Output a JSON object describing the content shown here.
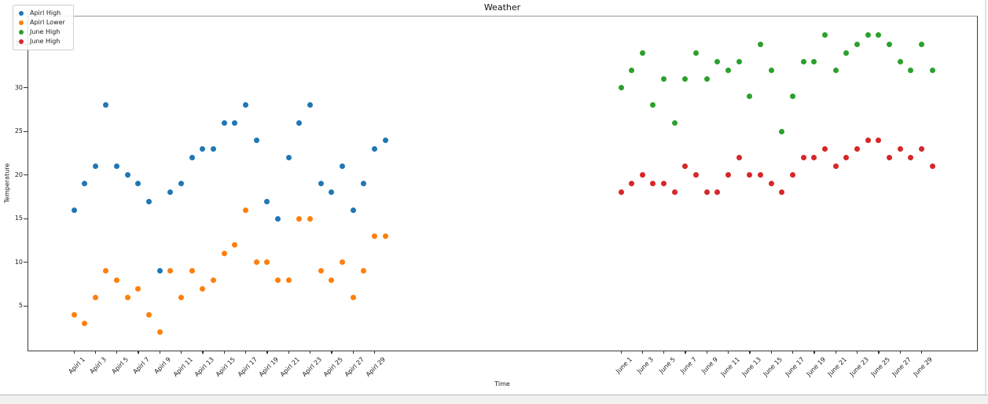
{
  "chart_data": {
    "type": "scatter",
    "title": "Weather",
    "xlabel": "Time",
    "ylabel": "Temperature",
    "ylim": [
      0,
      38
    ],
    "yticks": [
      5,
      10,
      15,
      20,
      25,
      30,
      35
    ],
    "grid": "off",
    "x_axis": {
      "groups": [
        {
          "label": "Apirl",
          "tick_days": [
            1,
            3,
            5,
            7,
            9,
            11,
            13,
            15,
            17,
            19,
            21,
            23,
            25,
            27,
            29
          ]
        },
        {
          "label": "June",
          "tick_days": [
            1,
            3,
            5,
            7,
            9,
            11,
            13,
            15,
            17,
            19,
            21,
            23,
            25,
            27,
            29
          ]
        }
      ]
    },
    "legend": {
      "position": "upper left",
      "entries": [
        {
          "label": "Apirl High",
          "color": "#1f77b4"
        },
        {
          "label": "Apirl Lower",
          "color": "#ff7f0e"
        },
        {
          "label": "June High",
          "color": "#2ca02c"
        },
        {
          "label": "June High",
          "color": "#d62728"
        }
      ]
    },
    "series": [
      {
        "name": "Apirl High",
        "color": "#1f77b4",
        "month": "Apirl",
        "first_day": 1,
        "values": [
          16,
          19,
          21,
          28,
          21,
          20,
          19,
          17,
          9,
          18,
          19,
          22,
          23,
          23,
          26,
          26,
          28,
          24,
          17,
          15,
          22,
          26,
          28,
          19,
          18,
          21,
          16,
          19,
          23,
          24
        ]
      },
      {
        "name": "Apirl Lower",
        "color": "#ff7f0e",
        "month": "Apirl",
        "first_day": 1,
        "values": [
          4,
          3,
          6,
          9,
          8,
          6,
          7,
          4,
          2,
          9,
          6,
          9,
          7,
          8,
          11,
          12,
          16,
          10,
          10,
          8,
          8,
          15,
          15,
          9,
          8,
          10,
          6,
          9,
          13,
          13
        ]
      },
      {
        "name": "June High",
        "color": "#2ca02c",
        "month": "June",
        "first_day": 1,
        "values": [
          30,
          32,
          34,
          28,
          31,
          26,
          31,
          34,
          31,
          33,
          32,
          33,
          29,
          35,
          32,
          25,
          29,
          33,
          33,
          36,
          32,
          34,
          35,
          36,
          36,
          35,
          33,
          32,
          35,
          32
        ]
      },
      {
        "name": "June High",
        "color": "#d62728",
        "month": "June",
        "first_day": 1,
        "values": [
          18,
          19,
          20,
          19,
          19,
          18,
          21,
          20,
          18,
          18,
          20,
          22,
          20,
          20,
          19,
          18,
          20,
          22,
          22,
          23,
          21,
          22,
          23,
          24,
          24,
          22,
          23,
          22,
          23,
          21
        ]
      }
    ]
  }
}
